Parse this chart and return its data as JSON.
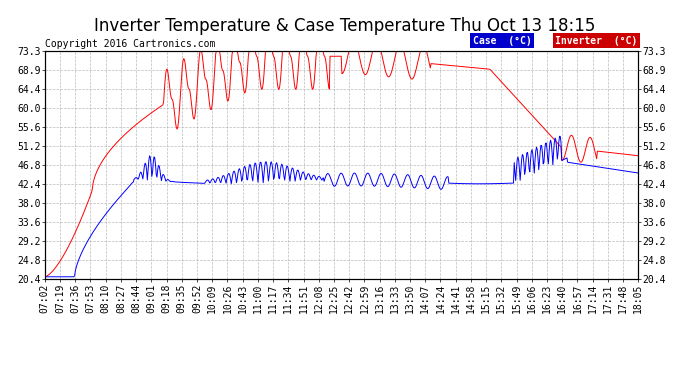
{
  "title": "Inverter Temperature & Case Temperature Thu Oct 13 18:15",
  "copyright": "Copyright 2016 Cartronics.com",
  "legend_labels": [
    "Case  (°C)",
    "Inverter  (°C)"
  ],
  "legend_bg_colors": [
    "#0000cc",
    "#cc0000"
  ],
  "yticks": [
    20.4,
    24.8,
    29.2,
    33.6,
    38.0,
    42.4,
    46.8,
    51.2,
    55.6,
    60.0,
    64.4,
    68.9,
    73.3
  ],
  "xtick_labels": [
    "07:02",
    "07:19",
    "07:36",
    "07:53",
    "08:10",
    "08:27",
    "08:44",
    "09:01",
    "09:18",
    "09:35",
    "09:52",
    "10:09",
    "10:26",
    "10:43",
    "11:00",
    "11:17",
    "11:34",
    "11:51",
    "12:08",
    "12:25",
    "12:42",
    "12:59",
    "13:16",
    "13:33",
    "13:50",
    "14:07",
    "14:24",
    "14:41",
    "14:58",
    "15:15",
    "15:32",
    "15:49",
    "16:06",
    "16:23",
    "16:40",
    "16:57",
    "17:14",
    "17:31",
    "17:48",
    "18:05"
  ],
  "ymin": 20.4,
  "ymax": 73.3,
  "bg_color": "#ffffff",
  "grid_color": "#aaaaaa",
  "title_fontsize": 12,
  "copyright_fontsize": 7,
  "tick_fontsize": 7
}
